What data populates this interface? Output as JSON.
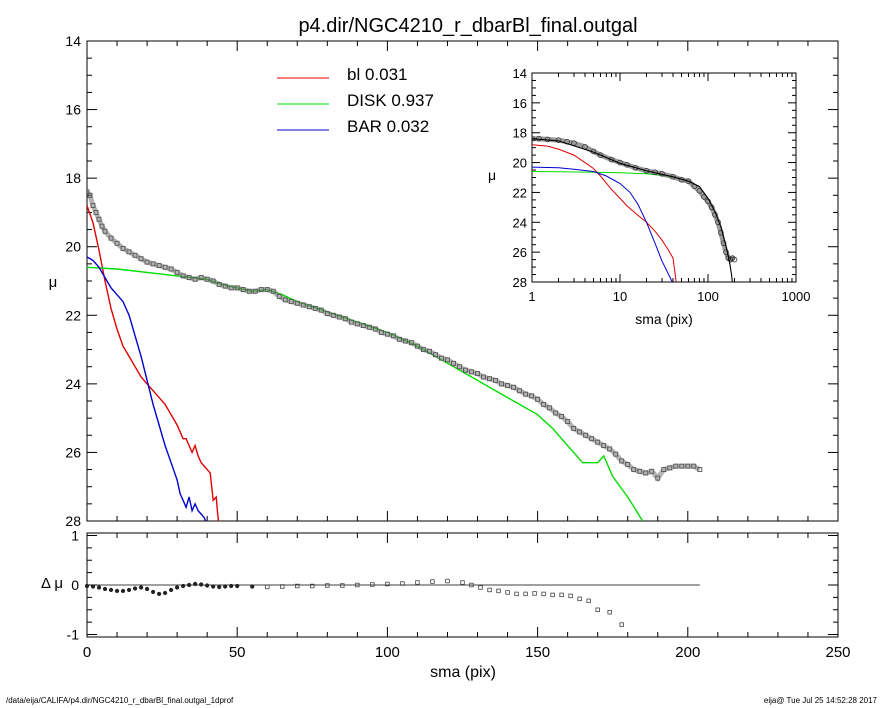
{
  "title": "p4.dir/NGC4210_r_dbarBl_final.outgal",
  "footer_left": "/data/eija/CALIFA/p4.dir/NGC4210_r_dbarBl_final.outgal_1dprof",
  "footer_right": "eija@  Tue Jul 25 14:52:28 2017",
  "colors": {
    "bl": "#e00000",
    "disk": "#00dd00",
    "bar": "#0000cc",
    "data": "#606060",
    "axis": "#000000"
  },
  "chart_data": [
    {
      "id": "main",
      "type": "line",
      "xlabel": "",
      "ylabel": "μ",
      "xlim": [
        0,
        250
      ],
      "ylim": [
        28,
        14
      ],
      "y_reversed": true,
      "x_ticks": [
        0,
        50,
        100,
        150,
        200,
        250
      ],
      "y_ticks": [
        14,
        16,
        18,
        20,
        22,
        24,
        26,
        28
      ],
      "legend": [
        {
          "label": "bl",
          "value": "0.031",
          "color": "#e00000"
        },
        {
          "label": "DISK",
          "value": "0.937",
          "color": "#00dd00"
        },
        {
          "label": "BAR",
          "value": "0.032",
          "color": "#0000cc"
        }
      ],
      "legend_position": "top-center",
      "series": [
        {
          "key": "bl",
          "x": [
            0,
            2,
            4,
            6,
            8,
            10,
            12,
            14,
            16,
            18,
            20,
            22,
            24,
            26,
            28,
            30,
            32,
            33,
            34,
            35,
            36,
            37,
            38,
            39,
            40,
            41,
            42,
            43,
            43.5,
            44
          ],
          "y": [
            18.8,
            19.3,
            20.1,
            21.0,
            21.8,
            22.4,
            22.9,
            23.2,
            23.5,
            23.8,
            24.0,
            24.2,
            24.4,
            24.6,
            24.9,
            25.2,
            25.6,
            25.6,
            25.8,
            26.0,
            25.8,
            26.1,
            26.3,
            26.4,
            26.5,
            26.6,
            27.4,
            27.3,
            27.8,
            28.2
          ]
        },
        {
          "key": "disk",
          "x": [
            0,
            10,
            20,
            30,
            40,
            45,
            50,
            55,
            60,
            65,
            70,
            80,
            90,
            100,
            110,
            120,
            130,
            140,
            150,
            155,
            160,
            165,
            170,
            172,
            175,
            180,
            185
          ],
          "y": [
            20.6,
            20.65,
            20.75,
            20.85,
            20.95,
            21.1,
            21.2,
            21.3,
            21.25,
            21.4,
            21.6,
            21.9,
            22.2,
            22.5,
            22.9,
            23.4,
            23.9,
            24.4,
            24.9,
            25.3,
            25.8,
            26.3,
            26.3,
            26.1,
            26.7,
            27.3,
            28.0
          ]
        },
        {
          "key": "bar",
          "x": [
            0,
            2,
            4,
            6,
            8,
            10,
            12,
            14,
            16,
            18,
            20,
            22,
            24,
            26,
            28,
            30,
            31,
            32,
            33,
            34,
            35,
            36,
            37,
            38,
            39,
            40
          ],
          "y": [
            20.3,
            20.4,
            20.6,
            20.9,
            21.2,
            21.4,
            21.6,
            22.0,
            22.6,
            23.2,
            23.9,
            24.6,
            25.2,
            25.8,
            26.3,
            26.8,
            27.2,
            27.4,
            27.6,
            27.3,
            27.7,
            27.5,
            27.7,
            27.8,
            27.9,
            28.1
          ]
        },
        {
          "key": "data",
          "x": [
            0,
            1,
            2,
            3,
            4,
            5,
            6,
            8,
            10,
            12,
            14,
            16,
            18,
            20,
            22,
            24,
            26,
            28,
            30,
            32,
            34,
            36,
            38,
            40,
            42,
            44,
            46,
            48,
            50,
            52,
            54,
            56,
            58,
            60,
            62,
            64,
            66,
            68,
            70,
            72,
            74,
            76,
            78,
            80,
            82,
            84,
            86,
            88,
            90,
            92,
            94,
            96,
            98,
            100,
            102,
            104,
            106,
            108,
            110,
            112,
            114,
            116,
            118,
            120,
            122,
            124,
            126,
            128,
            130,
            132,
            134,
            136,
            138,
            140,
            142,
            144,
            146,
            148,
            150,
            152,
            154,
            156,
            158,
            160,
            162,
            164,
            166,
            168,
            170,
            172,
            174,
            176,
            178,
            180,
            182,
            184,
            186,
            188,
            190,
            192,
            194,
            196,
            198,
            200,
            202,
            204
          ],
          "y": [
            18.4,
            18.5,
            18.8,
            19.0,
            19.2,
            19.4,
            19.55,
            19.75,
            19.9,
            20.05,
            20.15,
            20.25,
            20.35,
            20.45,
            20.5,
            20.55,
            20.6,
            20.65,
            20.75,
            20.85,
            20.9,
            20.95,
            20.9,
            20.95,
            21.0,
            21.1,
            21.15,
            21.2,
            21.2,
            21.25,
            21.3,
            21.3,
            21.25,
            21.25,
            21.3,
            21.45,
            21.55,
            21.6,
            21.65,
            21.7,
            21.75,
            21.8,
            21.85,
            21.95,
            22.0,
            22.05,
            22.1,
            22.2,
            22.25,
            22.3,
            22.35,
            22.4,
            22.5,
            22.55,
            22.6,
            22.7,
            22.75,
            22.8,
            22.9,
            23.0,
            23.05,
            23.15,
            23.25,
            23.3,
            23.4,
            23.5,
            23.6,
            23.65,
            23.7,
            23.8,
            23.85,
            23.9,
            24.0,
            24.05,
            24.1,
            24.2,
            24.3,
            24.35,
            24.45,
            24.6,
            24.7,
            24.85,
            24.95,
            25.1,
            25.3,
            25.4,
            25.5,
            25.6,
            25.7,
            25.8,
            25.9,
            26.05,
            26.25,
            26.35,
            26.5,
            26.55,
            26.6,
            26.55,
            26.75,
            26.5,
            26.45,
            26.4,
            26.4,
            26.4,
            26.4,
            26.5
          ]
        }
      ]
    },
    {
      "id": "residual",
      "type": "scatter",
      "xlabel": "sma (pix)",
      "ylabel": "Δ μ",
      "xlim": [
        0,
        250
      ],
      "ylim": [
        -1.05,
        1.05
      ],
      "x_ticks": [
        0,
        50,
        100,
        150,
        200,
        250
      ],
      "y_ticks": [
        -1,
        0,
        1
      ],
      "zero_line": {
        "x": [
          0,
          204
        ],
        "y": 0
      },
      "points": {
        "x": [
          0,
          2,
          4,
          6,
          8,
          10,
          12,
          14,
          16,
          18,
          20,
          22,
          24,
          26,
          28,
          30,
          32,
          34,
          36,
          38,
          40,
          42,
          44,
          46,
          48,
          50,
          55,
          60,
          65,
          70,
          75,
          80,
          85,
          90,
          95,
          100,
          105,
          110,
          115,
          120,
          125,
          128,
          131,
          134,
          137,
          140,
          143,
          146,
          149,
          152,
          155,
          158,
          161,
          164,
          167,
          170,
          174,
          178
        ],
        "y": [
          -0.02,
          -0.03,
          -0.05,
          -0.08,
          -0.1,
          -0.12,
          -0.12,
          -0.1,
          -0.07,
          -0.05,
          -0.08,
          -0.14,
          -0.18,
          -0.16,
          -0.1,
          -0.05,
          -0.02,
          0.0,
          0.02,
          0.01,
          -0.01,
          -0.03,
          -0.04,
          -0.03,
          -0.02,
          -0.02,
          -0.03,
          -0.04,
          -0.03,
          -0.02,
          -0.02,
          -0.01,
          -0.01,
          0.0,
          0.01,
          0.02,
          0.03,
          0.05,
          0.07,
          0.08,
          0.05,
          0.0,
          -0.05,
          -0.1,
          -0.12,
          -0.15,
          -0.18,
          -0.18,
          -0.17,
          -0.18,
          -0.2,
          -0.2,
          -0.22,
          -0.28,
          -0.32,
          -0.5,
          -0.55,
          -0.8
        ]
      }
    },
    {
      "id": "inset",
      "type": "line",
      "xlabel": "sma (pix)",
      "ylabel": "μ",
      "x_scale": "log",
      "xlim": [
        1,
        1000
      ],
      "ylim": [
        28,
        14
      ],
      "y_reversed": true,
      "x_ticks": [
        1,
        10,
        100,
        1000
      ],
      "y_ticks": [
        14,
        16,
        18,
        20,
        22,
        24,
        26,
        28
      ],
      "series": [
        {
          "key": "bl",
          "x": [
            1,
            1.5,
            2,
            3,
            4,
            5,
            6,
            8,
            10,
            12,
            15,
            20,
            25,
            30,
            35,
            40,
            44
          ],
          "y": [
            18.8,
            18.9,
            19.1,
            19.5,
            20.0,
            20.4,
            20.9,
            21.8,
            22.4,
            22.9,
            23.4,
            24.0,
            24.6,
            25.2,
            25.8,
            26.4,
            28.2
          ]
        },
        {
          "key": "disk",
          "x": [
            1,
            2,
            5,
            10,
            20,
            40,
            60,
            80
          ],
          "y": [
            20.6,
            20.62,
            20.65,
            20.68,
            20.75,
            20.95,
            21.25,
            21.6
          ]
        },
        {
          "key": "bar",
          "x": [
            1,
            2,
            3,
            5,
            7,
            10,
            13,
            16,
            20,
            25,
            30,
            35,
            40
          ],
          "y": [
            20.3,
            20.35,
            20.45,
            20.6,
            20.9,
            21.4,
            22.0,
            22.8,
            24.0,
            25.4,
            26.6,
            27.4,
            28.1
          ]
        },
        {
          "key": "data",
          "x": [
            1,
            1.2,
            1.5,
            2,
            2.5,
            3,
            4,
            5,
            6,
            8,
            10,
            12,
            15,
            20,
            25,
            30,
            40,
            50,
            60,
            70,
            80,
            90,
            100,
            110,
            120,
            130,
            140,
            150,
            160,
            170,
            180,
            190,
            200
          ],
          "y": [
            18.4,
            18.4,
            18.45,
            18.5,
            18.6,
            18.7,
            18.95,
            19.25,
            19.5,
            19.8,
            20.0,
            20.15,
            20.35,
            20.55,
            20.65,
            20.75,
            20.95,
            21.15,
            21.25,
            21.6,
            21.9,
            22.3,
            22.6,
            23.0,
            23.5,
            24.0,
            24.7,
            25.4,
            26.0,
            26.4,
            26.5,
            26.4,
            26.5
          ]
        },
        {
          "key": "model",
          "x": [
            1,
            2,
            5,
            10,
            20,
            40,
            60,
            80,
            100,
            120,
            140,
            160,
            175,
            185,
            190
          ],
          "y": [
            18.4,
            18.55,
            19.3,
            20.05,
            20.55,
            20.95,
            21.25,
            21.6,
            22.4,
            23.3,
            24.3,
            25.6,
            26.6,
            27.5,
            28.1
          ]
        }
      ]
    }
  ]
}
